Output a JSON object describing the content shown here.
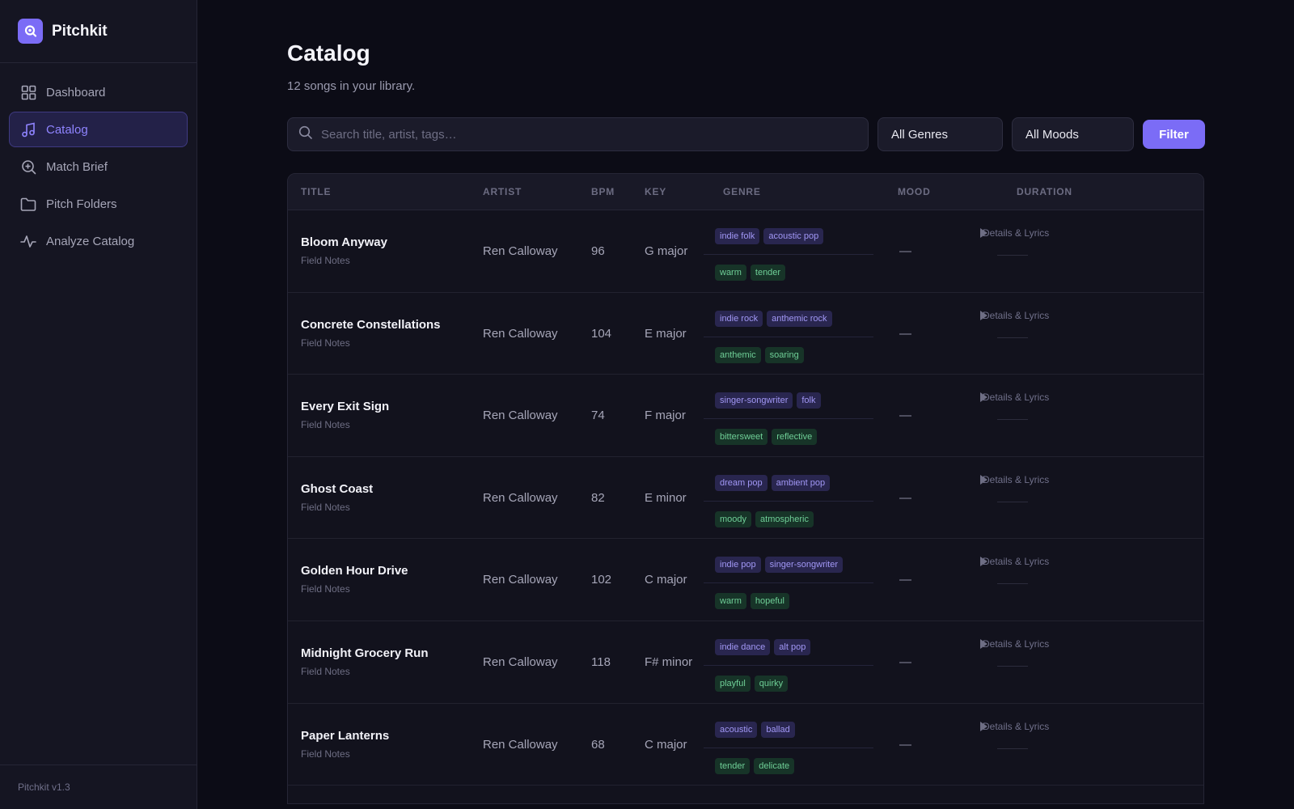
{
  "app": {
    "name": "Pitchkit",
    "version": "Pitchkit v1.3"
  },
  "nav": [
    {
      "label": "Dashboard",
      "icon": "grid-icon"
    },
    {
      "label": "Catalog",
      "icon": "music-note-icon",
      "active": true
    },
    {
      "label": "Match Brief",
      "icon": "search-plus-icon"
    },
    {
      "label": "Pitch Folders",
      "icon": "folder-icon"
    },
    {
      "label": "Analyze Catalog",
      "icon": "activity-icon"
    }
  ],
  "page": {
    "title": "Catalog",
    "subtitle": "12 songs in your library."
  },
  "toolbar": {
    "search_placeholder": "Search title, artist, tags…",
    "genre_select": "All Genres",
    "mood_select": "All Moods",
    "filter_label": "Filter"
  },
  "table": {
    "columns": [
      "TITLE",
      "ARTIST",
      "BPM",
      "KEY",
      "GENRE",
      "MOOD",
      "DURATION"
    ],
    "action_label": "Details & Lyrics",
    "empty_value": "—",
    "rows": [
      {
        "title": "Bloom Anyway",
        "album": "Field Notes",
        "artist": "Ren Calloway",
        "bpm": "96",
        "key": "G major",
        "genres": [
          "indie folk",
          "acoustic pop"
        ],
        "moods": [
          "warm",
          "tender"
        ]
      },
      {
        "title": "Concrete Constellations",
        "album": "Field Notes",
        "artist": "Ren Calloway",
        "bpm": "104",
        "key": "E major",
        "genres": [
          "indie rock",
          "anthemic rock"
        ],
        "moods": [
          "anthemic",
          "soaring"
        ]
      },
      {
        "title": "Every Exit Sign",
        "album": "Field Notes",
        "artist": "Ren Calloway",
        "bpm": "74",
        "key": "F major",
        "genres": [
          "singer-songwriter",
          "folk"
        ],
        "moods": [
          "bittersweet",
          "reflective"
        ]
      },
      {
        "title": "Ghost Coast",
        "album": "Field Notes",
        "artist": "Ren Calloway",
        "bpm": "82",
        "key": "E minor",
        "genres": [
          "dream pop",
          "ambient pop"
        ],
        "moods": [
          "moody",
          "atmospheric"
        ]
      },
      {
        "title": "Golden Hour Drive",
        "album": "Field Notes",
        "artist": "Ren Calloway",
        "bpm": "102",
        "key": "C major",
        "genres": [
          "indie pop",
          "singer-songwriter"
        ],
        "moods": [
          "warm",
          "hopeful"
        ]
      },
      {
        "title": "Midnight Grocery Run",
        "album": "Field Notes",
        "artist": "Ren Calloway",
        "bpm": "118",
        "key": "F# minor",
        "genres": [
          "indie dance",
          "alt pop"
        ],
        "moods": [
          "playful",
          "quirky"
        ]
      },
      {
        "title": "Paper Lanterns",
        "album": "Field Notes",
        "artist": "Ren Calloway",
        "bpm": "68",
        "key": "C major",
        "genres": [
          "acoustic",
          "ballad"
        ],
        "moods": [
          "tender",
          "delicate"
        ]
      }
    ]
  },
  "colors": {
    "accent": "#7b6cf6",
    "background": "#0c0c16",
    "sidebar": "#151522",
    "genre_tag": "#29264f",
    "mood_tag": "#173428"
  }
}
